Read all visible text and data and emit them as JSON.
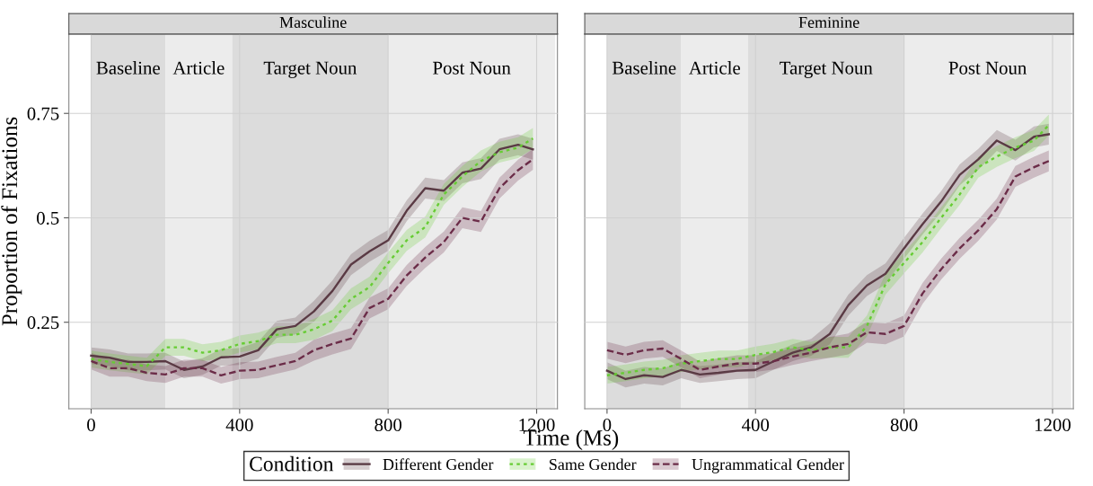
{
  "chart_data": [
    {
      "type": "line",
      "title": "Masculine",
      "ylabel": "Proportion of Fixations",
      "xlabel": "Time (Ms)",
      "legend_title": "Condition",
      "legend": "bottom",
      "grid": true,
      "x": [
        0,
        50,
        100,
        150,
        200,
        250,
        300,
        350,
        400,
        450,
        500,
        550,
        600,
        650,
        700,
        750,
        800,
        850,
        900,
        950,
        1000,
        1050,
        1100,
        1150,
        1190
      ],
      "xlim": [
        -60,
        1256
      ],
      "ylim": [
        0.043,
        0.94
      ],
      "xticks": [
        0,
        400,
        800,
        1200
      ],
      "yticks": [
        0.25,
        0.5,
        0.75
      ],
      "bands": [
        {
          "axis": "x",
          "from": 0,
          "to": 200,
          "label": "Baseline",
          "color": "#dcdcdc"
        },
        {
          "axis": "x",
          "from": 200,
          "to": 380,
          "label": "Article",
          "color": "#ececec"
        },
        {
          "axis": "x",
          "from": 380,
          "to": 800,
          "label": "Target Noun",
          "color": "#dcdcdc"
        },
        {
          "axis": "x",
          "from": 800,
          "to": 1250,
          "label": "Post Noun",
          "color": "#ececec"
        }
      ],
      "series": [
        {
          "name": "Different Gender",
          "color": "#5a3a44",
          "line_style": "solid",
          "values": [
            0.17,
            0.165,
            0.155,
            0.155,
            0.157,
            0.136,
            0.144,
            0.166,
            0.168,
            0.183,
            0.233,
            0.241,
            0.276,
            0.325,
            0.388,
            0.42,
            0.446,
            0.517,
            0.571,
            0.565,
            0.608,
            0.618,
            0.664,
            0.675,
            0.664
          ],
          "lower": [
            0.15,
            0.145,
            0.135,
            0.135,
            0.137,
            0.116,
            0.124,
            0.146,
            0.148,
            0.163,
            0.213,
            0.221,
            0.251,
            0.3,
            0.363,
            0.395,
            0.421,
            0.492,
            0.546,
            0.54,
            0.583,
            0.593,
            0.639,
            0.65,
            0.639
          ],
          "upper": [
            0.19,
            0.185,
            0.175,
            0.175,
            0.177,
            0.156,
            0.164,
            0.186,
            0.188,
            0.203,
            0.253,
            0.261,
            0.301,
            0.35,
            0.413,
            0.445,
            0.471,
            0.542,
            0.596,
            0.59,
            0.633,
            0.643,
            0.689,
            0.7,
            0.689
          ]
        },
        {
          "name": "Same Gender",
          "color": "#66cc33",
          "line_style": "dotted",
          "values": [
            0.162,
            0.155,
            0.15,
            0.145,
            0.19,
            0.19,
            0.177,
            0.183,
            0.198,
            0.205,
            0.22,
            0.22,
            0.233,
            0.254,
            0.306,
            0.334,
            0.392,
            0.446,
            0.478,
            0.556,
            0.599,
            0.636,
            0.657,
            0.668,
            0.69
          ],
          "lower": [
            0.142,
            0.135,
            0.13,
            0.125,
            0.17,
            0.17,
            0.157,
            0.163,
            0.178,
            0.185,
            0.2,
            0.2,
            0.208,
            0.229,
            0.281,
            0.309,
            0.367,
            0.421,
            0.453,
            0.531,
            0.574,
            0.611,
            0.632,
            0.643,
            0.665
          ],
          "upper": [
            0.182,
            0.175,
            0.17,
            0.165,
            0.21,
            0.21,
            0.197,
            0.203,
            0.218,
            0.225,
            0.24,
            0.24,
            0.258,
            0.279,
            0.331,
            0.359,
            0.417,
            0.471,
            0.503,
            0.581,
            0.624,
            0.661,
            0.682,
            0.693,
            0.715
          ]
        },
        {
          "name": "Ungrammatical Gender",
          "color": "#6b2c48",
          "line_style": "dashed",
          "values": [
            0.157,
            0.14,
            0.14,
            0.129,
            0.125,
            0.14,
            0.14,
            0.123,
            0.134,
            0.136,
            0.147,
            0.157,
            0.183,
            0.198,
            0.211,
            0.284,
            0.306,
            0.362,
            0.405,
            0.442,
            0.5,
            0.491,
            0.571,
            0.614,
            0.64
          ],
          "lower": [
            0.137,
            0.12,
            0.12,
            0.109,
            0.105,
            0.12,
            0.12,
            0.103,
            0.114,
            0.116,
            0.127,
            0.137,
            0.158,
            0.173,
            0.186,
            0.259,
            0.281,
            0.337,
            0.38,
            0.417,
            0.475,
            0.466,
            0.546,
            0.589,
            0.615
          ],
          "upper": [
            0.177,
            0.16,
            0.16,
            0.149,
            0.145,
            0.16,
            0.16,
            0.143,
            0.154,
            0.156,
            0.167,
            0.177,
            0.208,
            0.223,
            0.236,
            0.309,
            0.331,
            0.387,
            0.43,
            0.467,
            0.525,
            0.516,
            0.596,
            0.639,
            0.665
          ]
        }
      ]
    },
    {
      "type": "line",
      "title": "Feminine",
      "grid": true,
      "tick_labels": "x",
      "x": [
        0,
        50,
        100,
        150,
        200,
        250,
        300,
        350,
        400,
        450,
        500,
        550,
        600,
        650,
        700,
        750,
        800,
        850,
        900,
        950,
        1000,
        1050,
        1100,
        1150,
        1190
      ],
      "xlim": [
        -60,
        1256
      ],
      "ylim": [
        0.043,
        0.94
      ],
      "xticks": [
        0,
        400,
        800,
        1200
      ],
      "yticks": [
        0.25,
        0.5,
        0.75
      ],
      "bands": [
        {
          "axis": "x",
          "from": 0,
          "to": 200,
          "label": "Baseline",
          "color": "#dcdcdc"
        },
        {
          "axis": "x",
          "from": 200,
          "to": 380,
          "label": "Article",
          "color": "#ececec"
        },
        {
          "axis": "x",
          "from": 380,
          "to": 800,
          "label": "Target Noun",
          "color": "#dcdcdc"
        },
        {
          "axis": "x",
          "from": 800,
          "to": 1250,
          "label": "Post Noun",
          "color": "#ececec"
        }
      ],
      "series": [
        {
          "color": "#5a3a44",
          "line_style": "solid",
          "values": [
            0.134,
            0.114,
            0.123,
            0.119,
            0.136,
            0.125,
            0.129,
            0.134,
            0.136,
            0.157,
            0.177,
            0.19,
            0.222,
            0.291,
            0.338,
            0.366,
            0.427,
            0.485,
            0.539,
            0.603,
            0.64,
            0.685,
            0.662,
            0.694,
            0.7
          ],
          "lower": [
            0.114,
            0.094,
            0.103,
            0.099,
            0.116,
            0.105,
            0.109,
            0.114,
            0.116,
            0.137,
            0.157,
            0.17,
            0.197,
            0.266,
            0.313,
            0.341,
            0.402,
            0.46,
            0.514,
            0.578,
            0.615,
            0.66,
            0.637,
            0.669,
            0.675
          ],
          "upper": [
            0.154,
            0.134,
            0.143,
            0.139,
            0.156,
            0.145,
            0.149,
            0.154,
            0.156,
            0.177,
            0.197,
            0.21,
            0.247,
            0.316,
            0.363,
            0.391,
            0.452,
            0.51,
            0.564,
            0.628,
            0.665,
            0.71,
            0.687,
            0.719,
            0.725
          ]
        },
        {
          "color": "#66cc33",
          "line_style": "dotted",
          "values": [
            0.123,
            0.129,
            0.136,
            0.14,
            0.151,
            0.157,
            0.162,
            0.162,
            0.172,
            0.179,
            0.19,
            0.183,
            0.19,
            0.19,
            0.241,
            0.341,
            0.392,
            0.442,
            0.5,
            0.556,
            0.621,
            0.647,
            0.668,
            0.685,
            0.722
          ],
          "lower": [
            0.103,
            0.109,
            0.116,
            0.12,
            0.131,
            0.137,
            0.142,
            0.142,
            0.152,
            0.159,
            0.17,
            0.163,
            0.165,
            0.165,
            0.216,
            0.316,
            0.367,
            0.417,
            0.475,
            0.531,
            0.596,
            0.622,
            0.643,
            0.66,
            0.697
          ],
          "upper": [
            0.143,
            0.149,
            0.156,
            0.16,
            0.171,
            0.177,
            0.182,
            0.182,
            0.192,
            0.199,
            0.21,
            0.203,
            0.215,
            0.215,
            0.266,
            0.366,
            0.417,
            0.467,
            0.525,
            0.581,
            0.646,
            0.672,
            0.693,
            0.71,
            0.747
          ]
        },
        {
          "color": "#6b2c48",
          "line_style": "dashed",
          "values": [
            0.183,
            0.172,
            0.183,
            0.187,
            0.162,
            0.136,
            0.144,
            0.151,
            0.151,
            0.157,
            0.168,
            0.177,
            0.19,
            0.198,
            0.226,
            0.222,
            0.241,
            0.319,
            0.377,
            0.427,
            0.47,
            0.521,
            0.599,
            0.621,
            0.636
          ],
          "lower": [
            0.163,
            0.152,
            0.163,
            0.167,
            0.142,
            0.116,
            0.124,
            0.131,
            0.131,
            0.137,
            0.148,
            0.157,
            0.165,
            0.173,
            0.201,
            0.197,
            0.216,
            0.294,
            0.352,
            0.402,
            0.445,
            0.496,
            0.574,
            0.596,
            0.611
          ],
          "upper": [
            0.203,
            0.192,
            0.203,
            0.207,
            0.182,
            0.156,
            0.164,
            0.171,
            0.171,
            0.177,
            0.188,
            0.197,
            0.215,
            0.223,
            0.251,
            0.247,
            0.266,
            0.344,
            0.402,
            0.452,
            0.495,
            0.546,
            0.624,
            0.646,
            0.661
          ]
        }
      ]
    }
  ]
}
